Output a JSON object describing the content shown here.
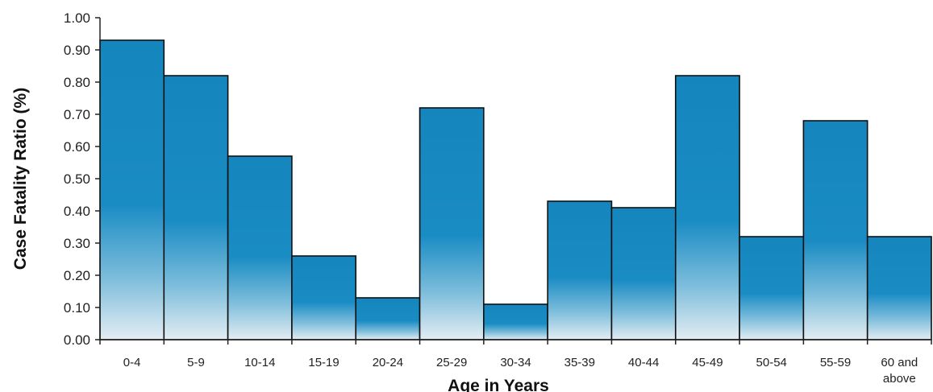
{
  "chart_data": {
    "type": "bar",
    "xlabel": "Age in Years",
    "ylabel": "Case Fatality Ratio (%)",
    "ylim": [
      0,
      1.0
    ],
    "yticks": [
      "0.00",
      "0.10",
      "0.20",
      "0.30",
      "0.40",
      "0.50",
      "0.60",
      "0.70",
      "0.80",
      "0.90",
      "1.00"
    ],
    "categories": [
      "0-4",
      "5-9",
      "10-14",
      "15-19",
      "20-24",
      "25-29",
      "30-34",
      "35-39",
      "40-44",
      "45-49",
      "50-54",
      "55-59",
      "60 and above"
    ],
    "values": [
      0.93,
      0.82,
      0.57,
      0.26,
      0.13,
      0.72,
      0.11,
      0.43,
      0.41,
      0.82,
      0.32,
      0.68,
      0.32
    ],
    "grid": false,
    "legend": "none",
    "bar_color": "#1a86bd"
  }
}
